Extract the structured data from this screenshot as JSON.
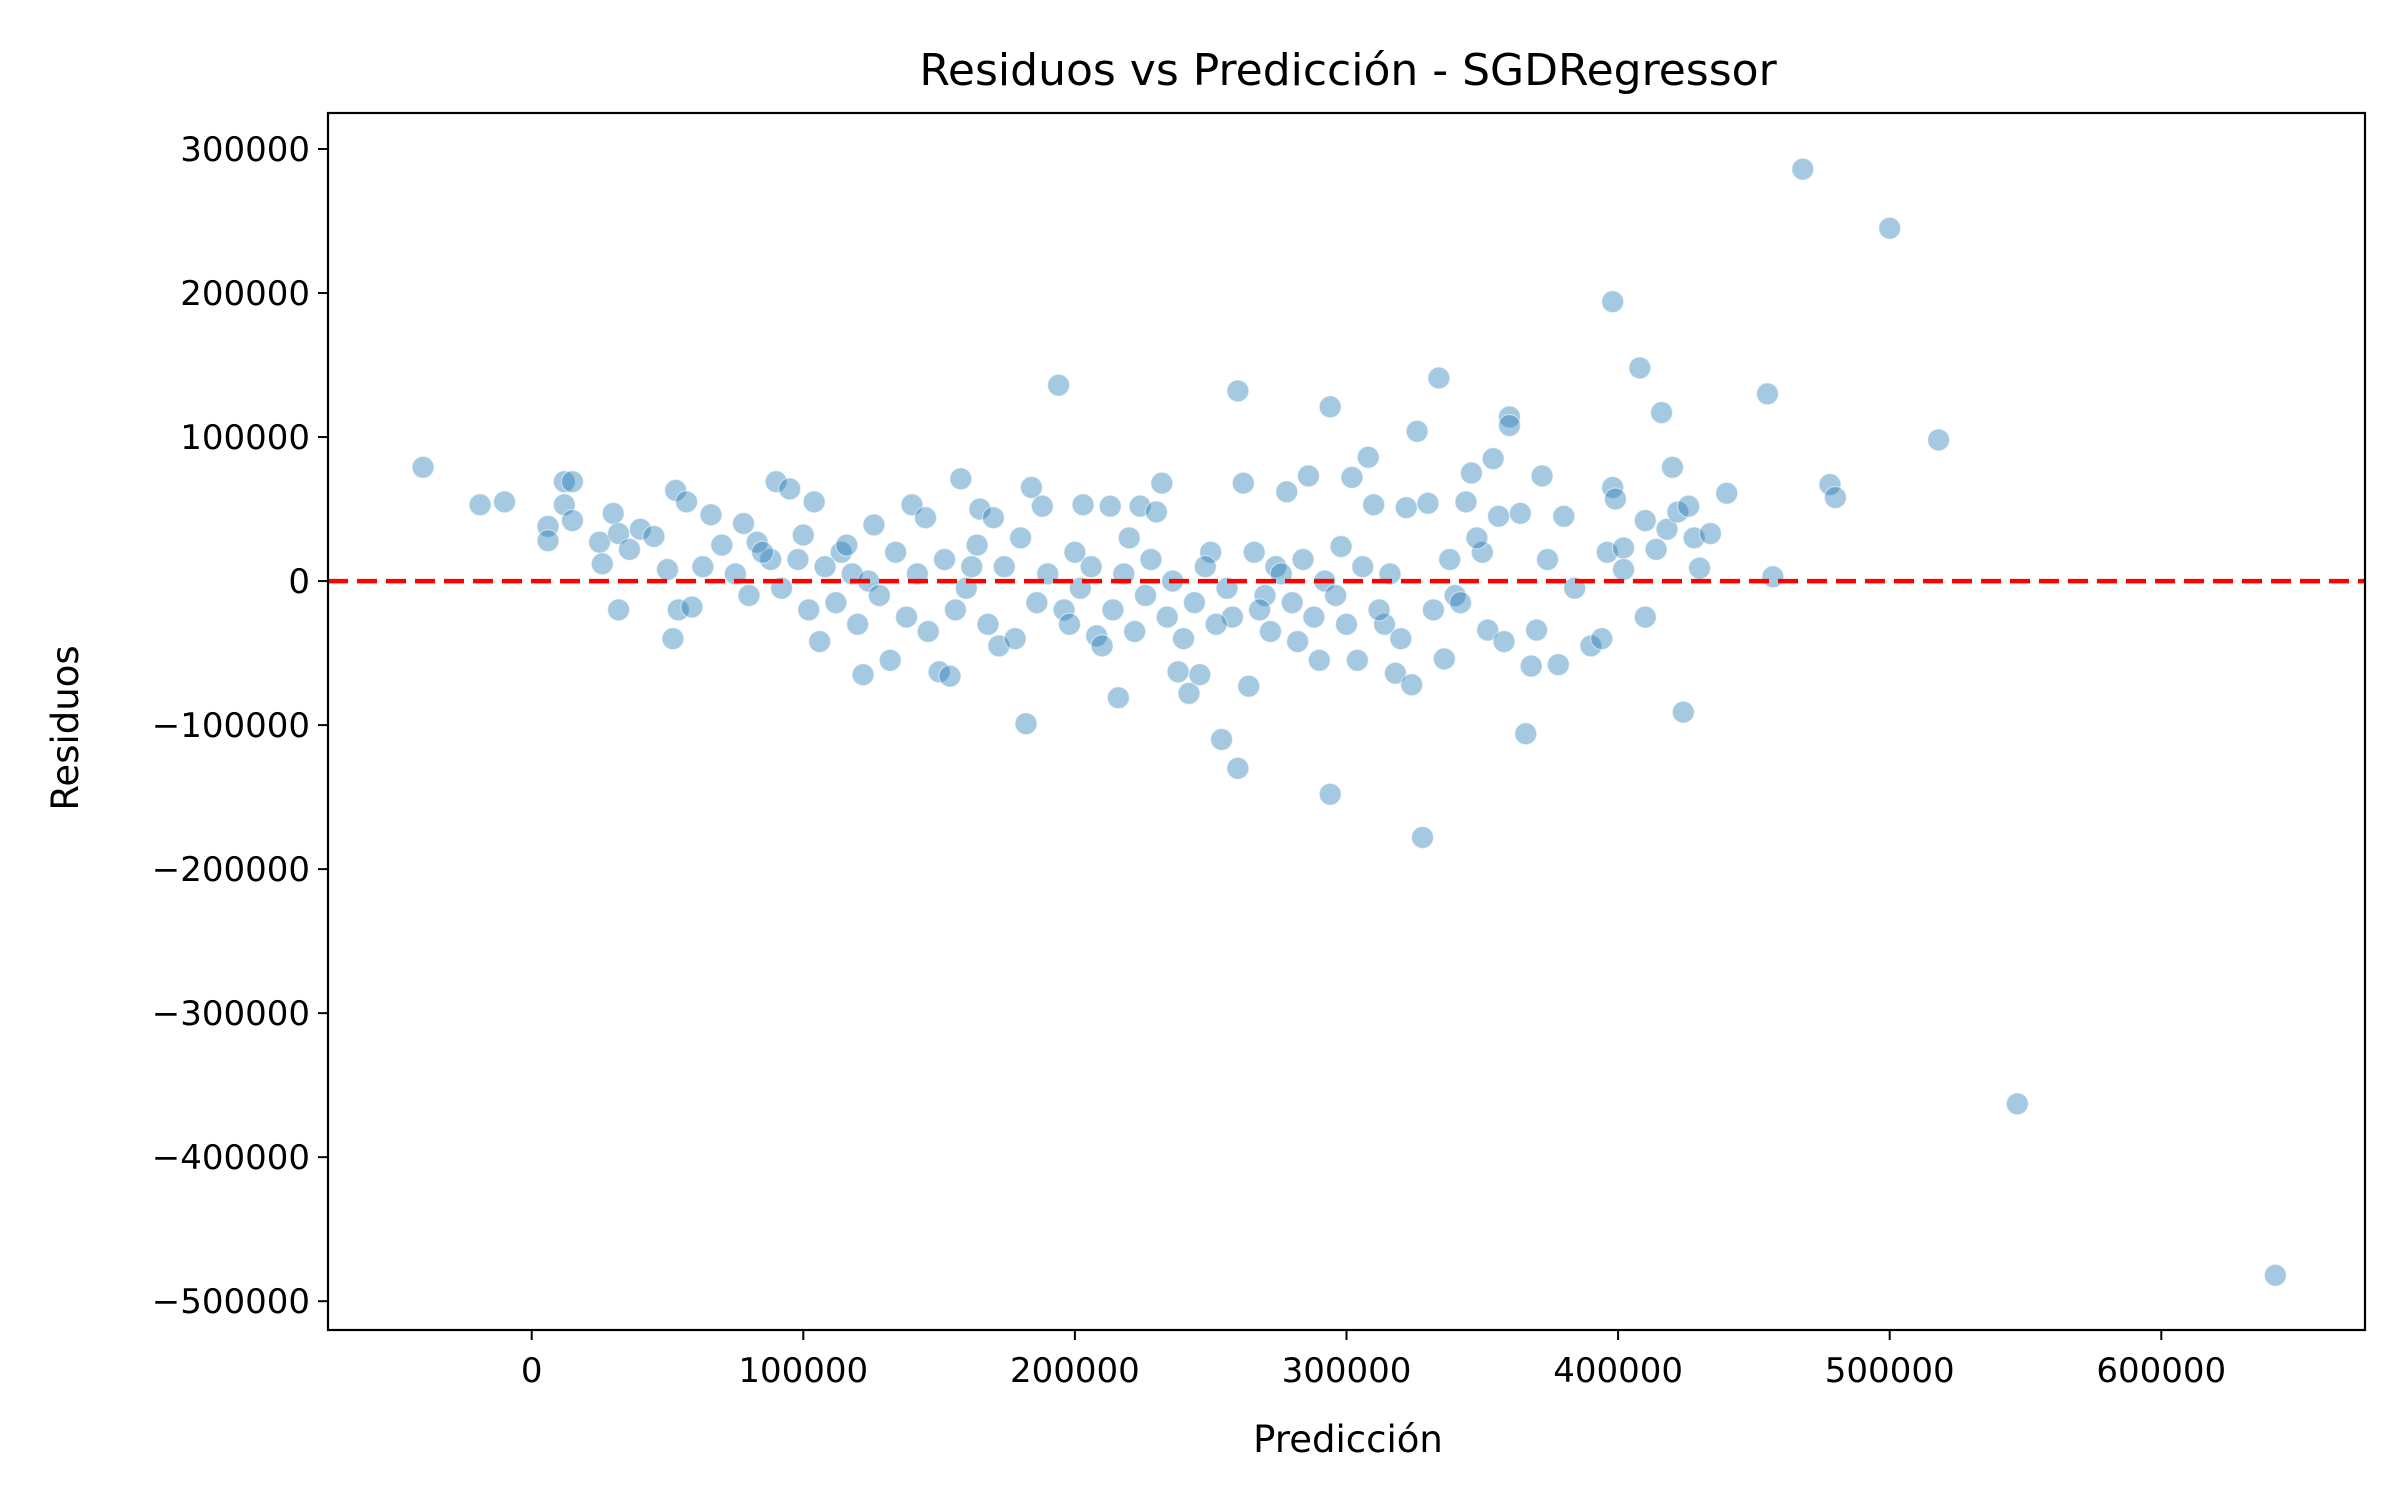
{
  "chart_data": {
    "type": "scatter",
    "title": "Residuos vs Predicción - SGDRegressor",
    "xlabel": "Predicción",
    "ylabel": "Residuos",
    "xlim": [
      -75000,
      675000
    ],
    "ylim": [
      -520000,
      325000
    ],
    "xticks": [
      0,
      100000,
      200000,
      300000,
      400000,
      500000,
      600000
    ],
    "xtick_labels": [
      "0",
      "100000",
      "200000",
      "300000",
      "400000",
      "500000",
      "600000"
    ],
    "yticks": [
      300000,
      200000,
      100000,
      0,
      -100000,
      -200000,
      -300000,
      -400000,
      -500000
    ],
    "ytick_labels": [
      "300000",
      "200000",
      "100000",
      "0",
      "−100000",
      "−200000",
      "−300000",
      "−400000",
      "−500000"
    ],
    "grid": false,
    "point_color": "#1f77b4",
    "point_opacity": 0.4,
    "reference_line": {
      "y": 0,
      "color": "#ff0000",
      "style": "dashed"
    },
    "points": [
      [
        -40000,
        79000
      ],
      [
        -19000,
        53000
      ],
      [
        -10000,
        55000
      ],
      [
        6000,
        38000
      ],
      [
        6000,
        28000
      ],
      [
        12000,
        69000
      ],
      [
        12000,
        53000
      ],
      [
        15000,
        69000
      ],
      [
        15000,
        42000
      ],
      [
        25000,
        27000
      ],
      [
        26000,
        12000
      ],
      [
        30000,
        47000
      ],
      [
        32000,
        33000
      ],
      [
        32000,
        -20000
      ],
      [
        36000,
        22000
      ],
      [
        40000,
        36000
      ],
      [
        45000,
        31000
      ],
      [
        50000,
        8000
      ],
      [
        52000,
        -40000
      ],
      [
        53000,
        63000
      ],
      [
        54000,
        -20000
      ],
      [
        57000,
        55000
      ],
      [
        59000,
        -18000
      ],
      [
        63000,
        10000
      ],
      [
        66000,
        46000
      ],
      [
        70000,
        25000
      ],
      [
        78000,
        40000
      ],
      [
        83000,
        27000
      ],
      [
        88000,
        15000
      ],
      [
        90000,
        69000
      ],
      [
        95000,
        64000
      ],
      [
        100000,
        32000
      ],
      [
        104000,
        55000
      ],
      [
        106000,
        -42000
      ],
      [
        114000,
        20000
      ],
      [
        118000,
        5000
      ],
      [
        122000,
        -65000
      ],
      [
        126000,
        39000
      ],
      [
        132000,
        -55000
      ],
      [
        140000,
        53000
      ],
      [
        145000,
        44000
      ],
      [
        150000,
        -63000
      ],
      [
        154000,
        -66000
      ],
      [
        158000,
        71000
      ],
      [
        162000,
        10000
      ],
      [
        165000,
        50000
      ],
      [
        170000,
        44000
      ],
      [
        172000,
        -45000
      ],
      [
        180000,
        30000
      ],
      [
        182000,
        -99000
      ],
      [
        184000,
        65000
      ],
      [
        188000,
        52000
      ],
      [
        194000,
        136000
      ],
      [
        196000,
        -20000
      ],
      [
        200000,
        20000
      ],
      [
        203000,
        53000
      ],
      [
        208000,
        -38000
      ],
      [
        213000,
        52000
      ],
      [
        216000,
        -81000
      ],
      [
        220000,
        30000
      ],
      [
        224000,
        52000
      ],
      [
        230000,
        48000
      ],
      [
        232000,
        68000
      ],
      [
        238000,
        -63000
      ],
      [
        242000,
        -78000
      ],
      [
        246000,
        -65000
      ],
      [
        250000,
        20000
      ],
      [
        254000,
        -110000
      ],
      [
        258000,
        -25000
      ],
      [
        260000,
        132000
      ],
      [
        260000,
        -130000
      ],
      [
        262000,
        68000
      ],
      [
        264000,
        -73000
      ],
      [
        270000,
        -10000
      ],
      [
        274000,
        10000
      ],
      [
        278000,
        62000
      ],
      [
        282000,
        -42000
      ],
      [
        286000,
        73000
      ],
      [
        290000,
        -55000
      ],
      [
        294000,
        121000
      ],
      [
        294000,
        -148000
      ],
      [
        298000,
        24000
      ],
      [
        302000,
        72000
      ],
      [
        304000,
        -55000
      ],
      [
        308000,
        86000
      ],
      [
        310000,
        53000
      ],
      [
        314000,
        -30000
      ],
      [
        318000,
        -64000
      ],
      [
        322000,
        51000
      ],
      [
        324000,
        -72000
      ],
      [
        326000,
        104000
      ],
      [
        328000,
        -178000
      ],
      [
        330000,
        54000
      ],
      [
        334000,
        141000
      ],
      [
        336000,
        -54000
      ],
      [
        340000,
        -10000
      ],
      [
        344000,
        55000
      ],
      [
        346000,
        75000
      ],
      [
        350000,
        20000
      ],
      [
        352000,
        -34000
      ],
      [
        354000,
        85000
      ],
      [
        356000,
        45000
      ],
      [
        358000,
        -42000
      ],
      [
        360000,
        114000
      ],
      [
        360000,
        108000
      ],
      [
        364000,
        47000
      ],
      [
        366000,
        -106000
      ],
      [
        368000,
        -59000
      ],
      [
        370000,
        -34000
      ],
      [
        372000,
        73000
      ],
      [
        374000,
        15000
      ],
      [
        378000,
        -58000
      ],
      [
        380000,
        45000
      ],
      [
        384000,
        -5000
      ],
      [
        390000,
        -45000
      ],
      [
        394000,
        -40000
      ],
      [
        396000,
        20000
      ],
      [
        398000,
        194000
      ],
      [
        398000,
        65000
      ],
      [
        399000,
        57000
      ],
      [
        402000,
        23000
      ],
      [
        402000,
        8000
      ],
      [
        408000,
        148000
      ],
      [
        410000,
        42000
      ],
      [
        410000,
        -25000
      ],
      [
        414000,
        22000
      ],
      [
        416000,
        117000
      ],
      [
        418000,
        36000
      ],
      [
        420000,
        79000
      ],
      [
        422000,
        48000
      ],
      [
        424000,
        -91000
      ],
      [
        426000,
        52000
      ],
      [
        428000,
        30000
      ],
      [
        430000,
        9000
      ],
      [
        434000,
        33000
      ],
      [
        440000,
        61000
      ],
      [
        455000,
        130000
      ],
      [
        457000,
        3000
      ],
      [
        468000,
        286000
      ],
      [
        478000,
        67000
      ],
      [
        480000,
        58000
      ],
      [
        500000,
        245000
      ],
      [
        518000,
        98000
      ],
      [
        547000,
        -363000
      ],
      [
        642000,
        -482000
      ],
      [
        75000,
        5000
      ],
      [
        80000,
        -10000
      ],
      [
        85000,
        20000
      ],
      [
        92000,
        -5000
      ],
      [
        98000,
        15000
      ],
      [
        102000,
        -20000
      ],
      [
        108000,
        10000
      ],
      [
        112000,
        -15000
      ],
      [
        116000,
        25000
      ],
      [
        120000,
        -30000
      ],
      [
        124000,
        0
      ],
      [
        128000,
        -10000
      ],
      [
        134000,
        20000
      ],
      [
        138000,
        -25000
      ],
      [
        142000,
        5000
      ],
      [
        146000,
        -35000
      ],
      [
        152000,
        15000
      ],
      [
        156000,
        -20000
      ],
      [
        160000,
        -5000
      ],
      [
        164000,
        25000
      ],
      [
        168000,
        -30000
      ],
      [
        174000,
        10000
      ],
      [
        178000,
        -40000
      ],
      [
        186000,
        -15000
      ],
      [
        190000,
        5000
      ],
      [
        198000,
        -30000
      ],
      [
        202000,
        -5000
      ],
      [
        206000,
        10000
      ],
      [
        210000,
        -45000
      ],
      [
        214000,
        -20000
      ],
      [
        218000,
        5000
      ],
      [
        222000,
        -35000
      ],
      [
        226000,
        -10000
      ],
      [
        228000,
        15000
      ],
      [
        234000,
        -25000
      ],
      [
        236000,
        0
      ],
      [
        240000,
        -40000
      ],
      [
        244000,
        -15000
      ],
      [
        248000,
        10000
      ],
      [
        252000,
        -30000
      ],
      [
        256000,
        -5000
      ],
      [
        266000,
        20000
      ],
      [
        268000,
        -20000
      ],
      [
        272000,
        -35000
      ],
      [
        276000,
        5000
      ],
      [
        280000,
        -15000
      ],
      [
        284000,
        15000
      ],
      [
        288000,
        -25000
      ],
      [
        292000,
        0
      ],
      [
        296000,
        -10000
      ],
      [
        300000,
        -30000
      ],
      [
        306000,
        10000
      ],
      [
        312000,
        -20000
      ],
      [
        316000,
        5000
      ],
      [
        320000,
        -40000
      ],
      [
        332000,
        -20000
      ],
      [
        338000,
        15000
      ],
      [
        342000,
        -15000
      ],
      [
        348000,
        30000
      ]
    ]
  }
}
